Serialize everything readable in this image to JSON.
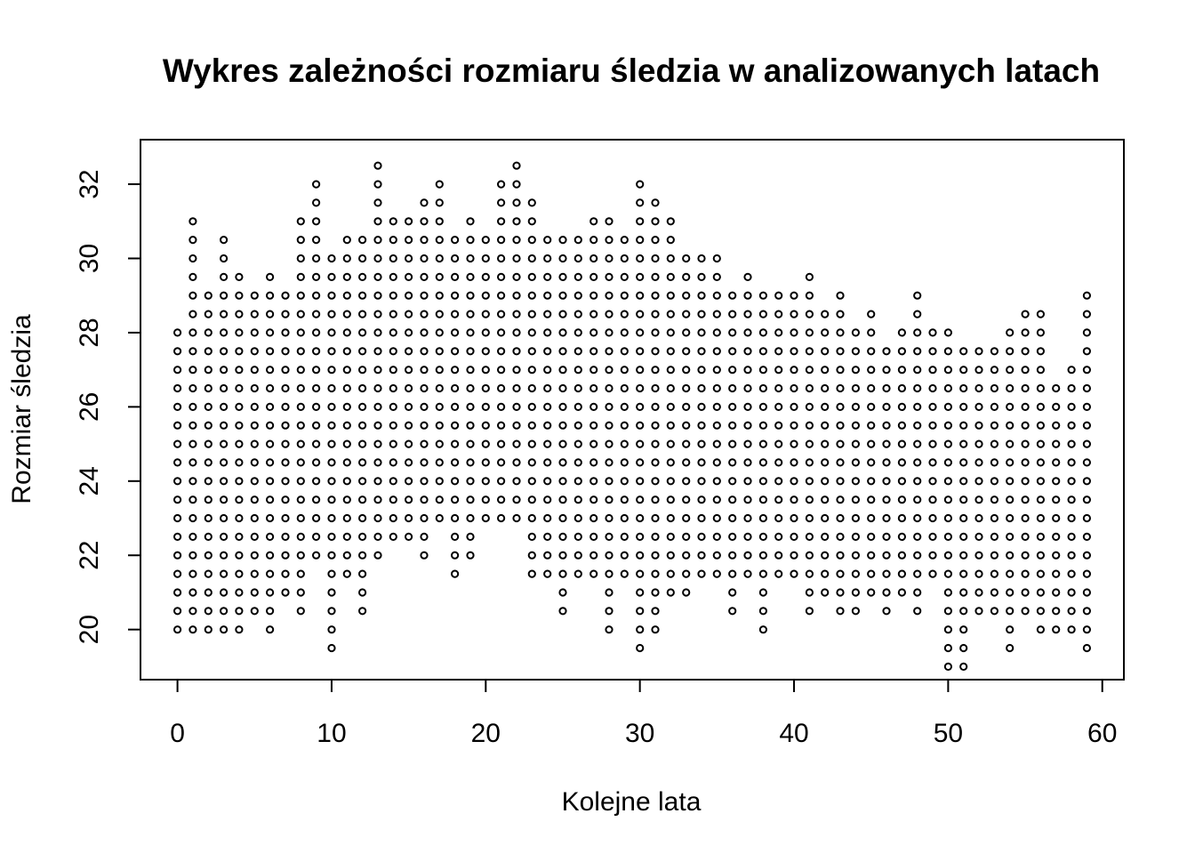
{
  "chart_data": {
    "type": "scatter",
    "title": "Wykres zależności rozmiaru śledzia w analizowanych latach",
    "xlabel": "Kolejne lata",
    "ylabel": "Rozmiar śledzia",
    "xlim": [
      -2.4,
      61.4
    ],
    "ylim": [
      18.65,
      33.2
    ],
    "xticks": [
      0,
      10,
      20,
      30,
      40,
      50,
      60
    ],
    "yticks": [
      20,
      22,
      24,
      26,
      28,
      30,
      32
    ],
    "grid": false,
    "marker": "open-circle",
    "point_color": "#000000",
    "series": [
      {
        "bands": [
          [
            0,
            20,
            28
          ],
          [
            1,
            20,
            31
          ],
          [
            2,
            20,
            29
          ],
          [
            3,
            20,
            30.5
          ],
          [
            4,
            20,
            29.5
          ],
          [
            5,
            20.5,
            29
          ],
          [
            6,
            20,
            29.5
          ],
          [
            7,
            21,
            29
          ],
          [
            8,
            20.5,
            31
          ],
          [
            9,
            22,
            32
          ],
          [
            10,
            19.5,
            30
          ],
          [
            11,
            21.5,
            30.5
          ],
          [
            12,
            20.5,
            30.5
          ],
          [
            13,
            22,
            32.5
          ],
          [
            14,
            22.5,
            31
          ],
          [
            15,
            22.5,
            31
          ],
          [
            16,
            22,
            31.5
          ],
          [
            17,
            23,
            32
          ],
          [
            18,
            21.5,
            30.5
          ],
          [
            19,
            22,
            31
          ],
          [
            20,
            23,
            30.5
          ],
          [
            21,
            23,
            32
          ],
          [
            22,
            23,
            32.5
          ],
          [
            23,
            21.5,
            31.5
          ],
          [
            24,
            21.5,
            30.5
          ],
          [
            25,
            20.5,
            30.5
          ],
          [
            26,
            21.5,
            30.5
          ],
          [
            27,
            21.5,
            31
          ],
          [
            28,
            20,
            31
          ],
          [
            29,
            21.5,
            30.5
          ],
          [
            30,
            19.5,
            32
          ],
          [
            31,
            20,
            31.5
          ],
          [
            32,
            21,
            31
          ],
          [
            33,
            21,
            30
          ],
          [
            34,
            21.5,
            30
          ],
          [
            35,
            21.5,
            30
          ],
          [
            36,
            20.5,
            29
          ],
          [
            37,
            21.5,
            29.5
          ],
          [
            38,
            20,
            29
          ],
          [
            39,
            21.5,
            29
          ],
          [
            40,
            21.5,
            29
          ],
          [
            41,
            20.5,
            29.5
          ],
          [
            42,
            21,
            28.5
          ],
          [
            43,
            20.5,
            29
          ],
          [
            44,
            20.5,
            28
          ],
          [
            45,
            21,
            28.5
          ],
          [
            46,
            20.5,
            27.5
          ],
          [
            47,
            21,
            28
          ],
          [
            48,
            20.5,
            29
          ],
          [
            49,
            21.5,
            28
          ],
          [
            50,
            19,
            28
          ],
          [
            51,
            19,
            27.5
          ],
          [
            52,
            20.5,
            27.5
          ],
          [
            53,
            20.5,
            27.5
          ],
          [
            54,
            19.5,
            28
          ],
          [
            55,
            20.5,
            28.5
          ],
          [
            56,
            20,
            28.5
          ],
          [
            57,
            20,
            26.5
          ],
          [
            58,
            20,
            27
          ],
          [
            59,
            19.5,
            29
          ]
        ]
      }
    ]
  }
}
